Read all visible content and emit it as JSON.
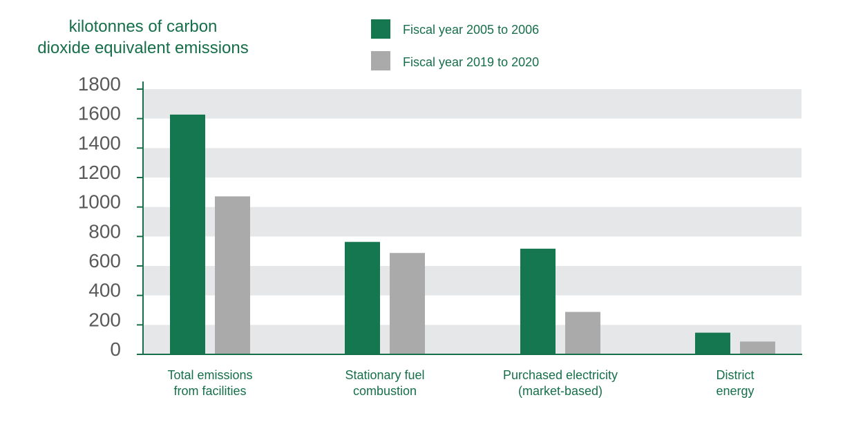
{
  "chart_data": {
    "type": "bar",
    "ylabel_lines": [
      "kilotonnes of carbon",
      "dioxide equivalent emissions"
    ],
    "categories": [
      [
        "Total emissions",
        "from facilities"
      ],
      [
        "Stationary fuel",
        "combustion"
      ],
      [
        "Purchased electricity",
        "(market-based)"
      ],
      [
        "District",
        "energy"
      ]
    ],
    "series": [
      {
        "name": "Fiscal year 2005 to 2006",
        "color": "#15774f",
        "values": [
          1627,
          763,
          717,
          147
        ]
      },
      {
        "name": "Fiscal year 2019 to 2020",
        "color": "#aaaaaa",
        "values": [
          1072,
          688,
          288,
          87
        ]
      }
    ],
    "ylim": [
      0,
      1800
    ],
    "yticks": [
      "0",
      "200",
      "400",
      "600",
      "800",
      "1000",
      "1200",
      "1400",
      "1600",
      "1800"
    ],
    "grid": "alternating horizontal bands",
    "legend_position": "top-center",
    "axis_color": "#166f4a",
    "band_color": "#e6e7e8"
  }
}
